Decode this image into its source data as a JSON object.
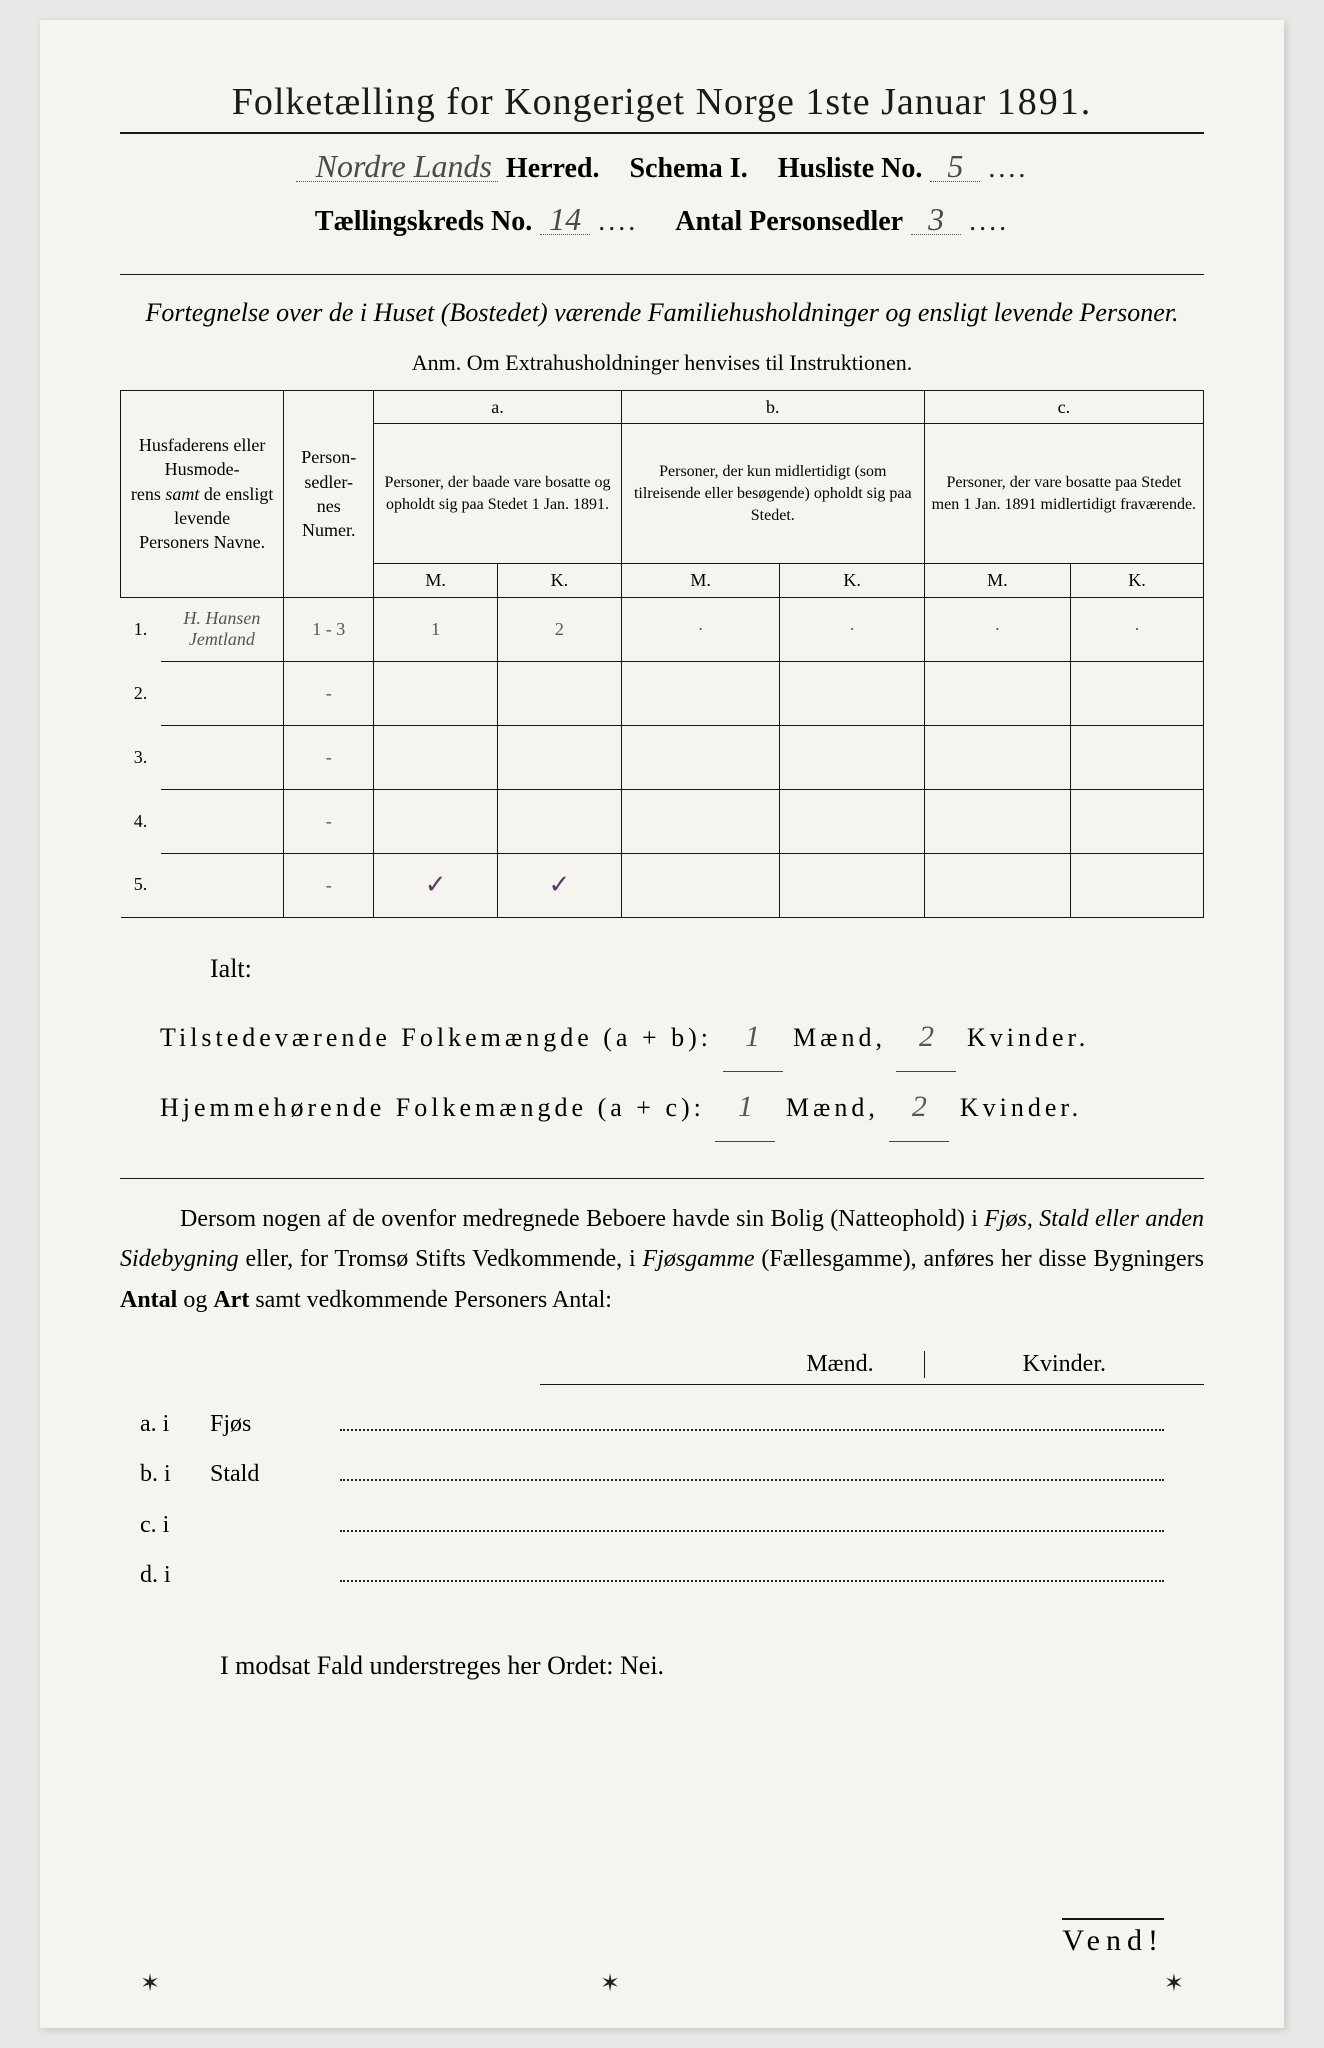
{
  "title": {
    "text": "Folketælling for Kongeriget Norge 1ste Januar",
    "year": "1891."
  },
  "header": {
    "herred_hand": "Nordre Lands",
    "herred_label": "Herred.",
    "schema_label": "Schema I.",
    "husliste_label": "Husliste No.",
    "husliste_no": "5",
    "kreds_label": "Tællingskreds No.",
    "kreds_no": "14",
    "antal_label": "Antal Personsedler",
    "antal_no": "3"
  },
  "subtitle": "Fortegnelse over de i Huset (Bostedet) værende Familiehusholdninger og ensligt levende Personer.",
  "anm": "Anm.  Om Extrahusholdninger henvises til Instruktionen.",
  "table": {
    "col_names": {
      "left": "Husfaderens eller Husmoderens samt de ensligt levende Personers Navne.",
      "numer": "Person-\nsedler-\nnes\nNumer.",
      "a_label": "a.",
      "a_text": "Personer, der baade vare bosatte og opholdt sig paa Stedet 1 Jan. 1891.",
      "b_label": "b.",
      "b_text": "Personer, der kun midlertidigt (som tilreisende eller besøgende) opholdt sig paa Stedet.",
      "c_label": "c.",
      "c_text": "Personer, der vare bosatte paa Stedet men 1 Jan. 1891 midlertidigt fraværende.",
      "m": "M.",
      "k": "K."
    },
    "rows": [
      {
        "n": "1.",
        "name": "H. Hansen Jemtland",
        "numer": "1 - 3",
        "am": "1",
        "ak": "2",
        "bm": "·",
        "bk": "·",
        "cm": "·",
        "ck": "·"
      },
      {
        "n": "2.",
        "name": "",
        "numer": "-",
        "am": "",
        "ak": "",
        "bm": "",
        "bk": "",
        "cm": "",
        "ck": ""
      },
      {
        "n": "3.",
        "name": "",
        "numer": "-",
        "am": "",
        "ak": "",
        "bm": "",
        "bk": "",
        "cm": "",
        "ck": ""
      },
      {
        "n": "4.",
        "name": "",
        "numer": "-",
        "am": "",
        "ak": "",
        "bm": "",
        "bk": "",
        "cm": "",
        "ck": ""
      },
      {
        "n": "5.",
        "name": "",
        "numer": "-",
        "am": "✓",
        "ak": "✓",
        "bm": "",
        "bk": "",
        "cm": "",
        "ck": ""
      }
    ]
  },
  "ialt": "Ialt:",
  "totals": {
    "line1_a": "Tilstedeværende Folkemængde (a + b):",
    "line2_a": "Hjemmehørende Folkemængde (a + c):",
    "maend": "Mænd,",
    "kvinder": "Kvinder.",
    "t_m": "1",
    "t_k": "2",
    "h_m": "1",
    "h_k": "2"
  },
  "para": {
    "text1": "Dersom nogen af de ovenfor medregnede Beboere havde sin Bolig (Natteophold) i ",
    "it1": "Fjøs, Stald eller anden Sidebygning",
    "text2": " eller, for Tromsø Stifts Vedkommende, i ",
    "it2": "Fjøsgamme",
    "text3": " (Fællesgamme), anføres her disse Bygningers ",
    "b1": "Antal",
    "text4": " og ",
    "b2": "Art",
    "text5": " samt vedkommende Personers Antal:"
  },
  "mk": {
    "m": "Mænd.",
    "k": "Kvinder."
  },
  "abcd": [
    {
      "lab": "a.  i",
      "word": "Fjøs"
    },
    {
      "lab": "b.  i",
      "word": "Stald"
    },
    {
      "lab": "c.  i",
      "word": ""
    },
    {
      "lab": "d.  i",
      "word": ""
    }
  ],
  "modsat": "I modsat Fald understreges her Ordet: Nei.",
  "vend": "Vend!",
  "styling": {
    "page_bg": "#f5f4ee",
    "body_bg": "#e8e8e6",
    "ink": "#1a1a1a",
    "hand_color": "#555555",
    "tick_color": "#5a3a6a",
    "title_fontsize": 38,
    "header_fontsize": 28,
    "body_fontsize": 24
  }
}
